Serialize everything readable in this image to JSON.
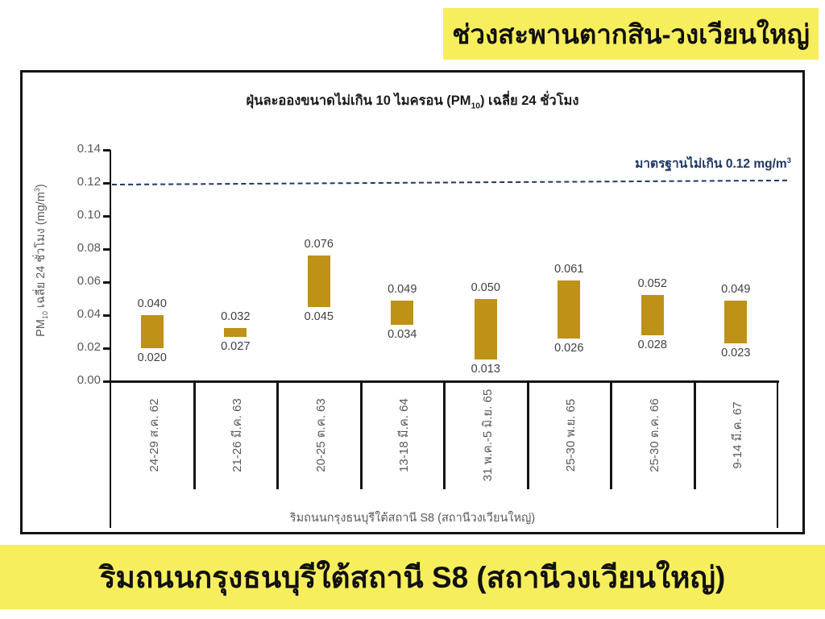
{
  "banner_top": {
    "text": "ช่วงสะพานตากสิน-วงเวียนใหญ่"
  },
  "banner_bottom": {
    "text": "ริมถนนกรุงธนบุรีใต้สถานี S8 (สถานีวงเวียนใหญ่)"
  },
  "colors": {
    "banner_bg": "#F7EE5E",
    "bar": "#BE9117",
    "standard_line": "#1F3864",
    "axis_text": "#595959",
    "value_text": "#404040",
    "chart_border": "#141414"
  },
  "chart_data": {
    "type": "bar",
    "variant": "floating-range-bars",
    "title": {
      "prefix": "ฝุ่นละอองขนาดไม่เกิน 10 ไมครอน (PM",
      "subscript": "10",
      "suffix": ") เฉลี่ย 24 ชั่วโมง"
    },
    "y_axis": {
      "title_prefix": "PM",
      "title_subscript": "10",
      "title_mid": " เฉลี่ย 24 ชั่วโมง (mg/m",
      "title_superscript": "3",
      "title_close": ")",
      "min": 0,
      "max": 0.14,
      "ticks": [
        0,
        0.02,
        0.04,
        0.06,
        0.08,
        0.1,
        0.12,
        0.14
      ]
    },
    "x_axis_title": "ริมถนนกรุงธนบุรีใต้สถานี S8 (สถานีวงเวียนใหญ่)",
    "standard_line": {
      "value": 0.12,
      "label": "มาตรฐานไม่เกิน 0.12 mg/m",
      "label_superscript": "3"
    },
    "points": [
      {
        "category": "24-29 ส.ค. 62",
        "low": 0.02,
        "high": 0.04
      },
      {
        "category": "21-26 มี.ค. 63",
        "low": 0.027,
        "high": 0.032
      },
      {
        "category": "20-25 ต.ค. 63",
        "low": 0.045,
        "high": 0.076
      },
      {
        "category": "13-18 มี.ค. 64",
        "low": 0.034,
        "high": 0.049
      },
      {
        "category": "31 พ.ค.-5 มิ.ย. 65",
        "low": 0.013,
        "high": 0.05
      },
      {
        "category": "25-30 พ.ย. 65",
        "low": 0.026,
        "high": 0.061
      },
      {
        "category": "25-30 ต.ค. 66",
        "low": 0.028,
        "high": 0.052
      },
      {
        "category": "9-14 มี.ค. 67",
        "low": 0.023,
        "high": 0.049
      }
    ],
    "grid": false,
    "legend": false
  }
}
